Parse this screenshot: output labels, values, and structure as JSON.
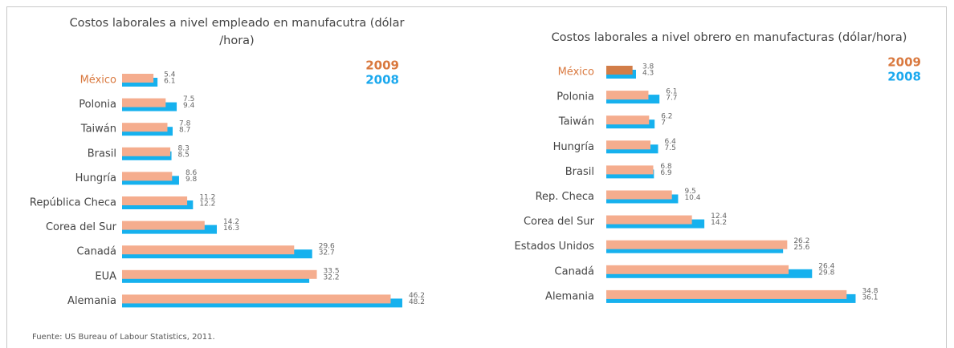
{
  "chart_data": [
    {
      "type": "bar",
      "orientation": "horizontal",
      "title": "Costos laborales a nivel empleado en manufacutra (dólar /hora)",
      "categories": [
        "México",
        "Polonia",
        "Taiwán",
        "Brasil",
        "Hungría",
        "República Checa",
        "Corea del Sur",
        "Canadá",
        "EUA",
        "Alemania"
      ],
      "series": [
        {
          "name": "2009",
          "color": "#f5ad8e",
          "label_color": "#d9783e",
          "values": [
            5.4,
            7.5,
            7.8,
            8.3,
            8.6,
            11.2,
            14.2,
            29.6,
            33.5,
            46.2
          ]
        },
        {
          "name": "2008",
          "color": "#16b1ee",
          "label_color": "#1aa8ee",
          "values": [
            6.1,
            9.4,
            8.7,
            8.5,
            9.8,
            12.2,
            16.3,
            32.7,
            32.2,
            48.2
          ]
        }
      ],
      "xlim": [
        0,
        50
      ],
      "legend": "upper right",
      "highlight": {
        "index": 0,
        "label_color": "#d9783e"
      }
    },
    {
      "type": "bar",
      "orientation": "horizontal",
      "title": "Costos laborales a nivel obrero en manufacturas (dólar/hora)",
      "categories": [
        "México",
        "Polonia",
        "Taiwán",
        "Hungría",
        "Brasil",
        "Rep. Checa",
        "Corea del Sur",
        "Estados Unidos",
        "Canadá",
        "Alemania"
      ],
      "series": [
        {
          "name": "2009",
          "color": "#f5ad8e",
          "label_color": "#d9783e",
          "values": [
            3.8,
            6.1,
            6.2,
            6.4,
            6.8,
            9.5,
            12.4,
            26.2,
            26.4,
            34.8
          ]
        },
        {
          "name": "2008",
          "color": "#16b1ee",
          "label_color": "#1aa8ee",
          "values": [
            4.3,
            7.7,
            7,
            7.5,
            6.9,
            10.4,
            14.2,
            25.6,
            29.8,
            36.1
          ]
        }
      ],
      "xlim": [
        0,
        40
      ],
      "legend": "upper right",
      "highlight": {
        "index": 0,
        "label_color": "#d9783e",
        "bar_color": "#d27d48"
      }
    }
  ],
  "footer": {
    "source": "Fuente: US Bureau of Labour Statistics, 2011."
  }
}
